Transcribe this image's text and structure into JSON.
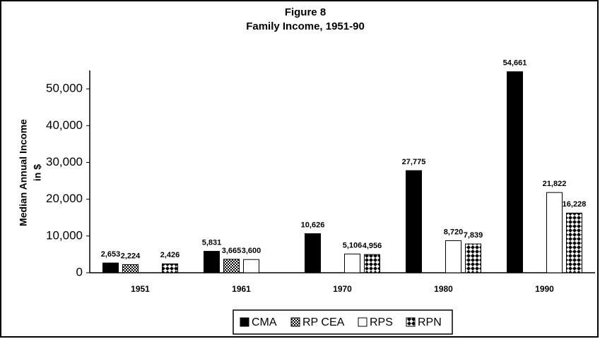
{
  "chart_data": {
    "type": "bar",
    "title": [
      "Figure 8",
      "Family Income, 1951-90"
    ],
    "ylabel": [
      "Median Annual Income",
      "in $"
    ],
    "categories": [
      "1951",
      "1961",
      "1970",
      "1980",
      "1990"
    ],
    "series": [
      {
        "name": "CMA",
        "color": "#000000",
        "values": [
          2653,
          5831,
          10626,
          27775,
          54661
        ],
        "value_labels": [
          "2,653",
          "5,831",
          "10,626",
          "27,775",
          "54,661"
        ]
      },
      {
        "name": "RP CEA",
        "color": "#444444",
        "values": [
          2224,
          3665,
          null,
          null,
          null
        ],
        "value_labels": [
          "2,224",
          "3,665",
          null,
          null,
          null
        ]
      },
      {
        "name": "RPS",
        "color": "#ffffff",
        "values": [
          null,
          3600,
          5106,
          8720,
          21822
        ],
        "value_labels": [
          null,
          "3,600",
          "5,106",
          "8,720",
          "21,822"
        ]
      },
      {
        "name": "RPN",
        "color": "#888888",
        "values": [
          2426,
          null,
          4956,
          7839,
          16228
        ],
        "value_labels": [
          "2,426",
          null,
          "4,956",
          "7,839",
          "16,228"
        ]
      }
    ],
    "ylim": [
      0,
      55000
    ],
    "yticks": [
      0,
      {
        "value": 10000,
        "label": "10,000"
      },
      {
        "value": 20000,
        "label": "20,000"
      },
      {
        "value": 30000,
        "label": "30,000"
      },
      {
        "value": 40000,
        "label": "40,000"
      },
      {
        "value": 50000,
        "label": "50,000"
      }
    ],
    "grid": false
  }
}
